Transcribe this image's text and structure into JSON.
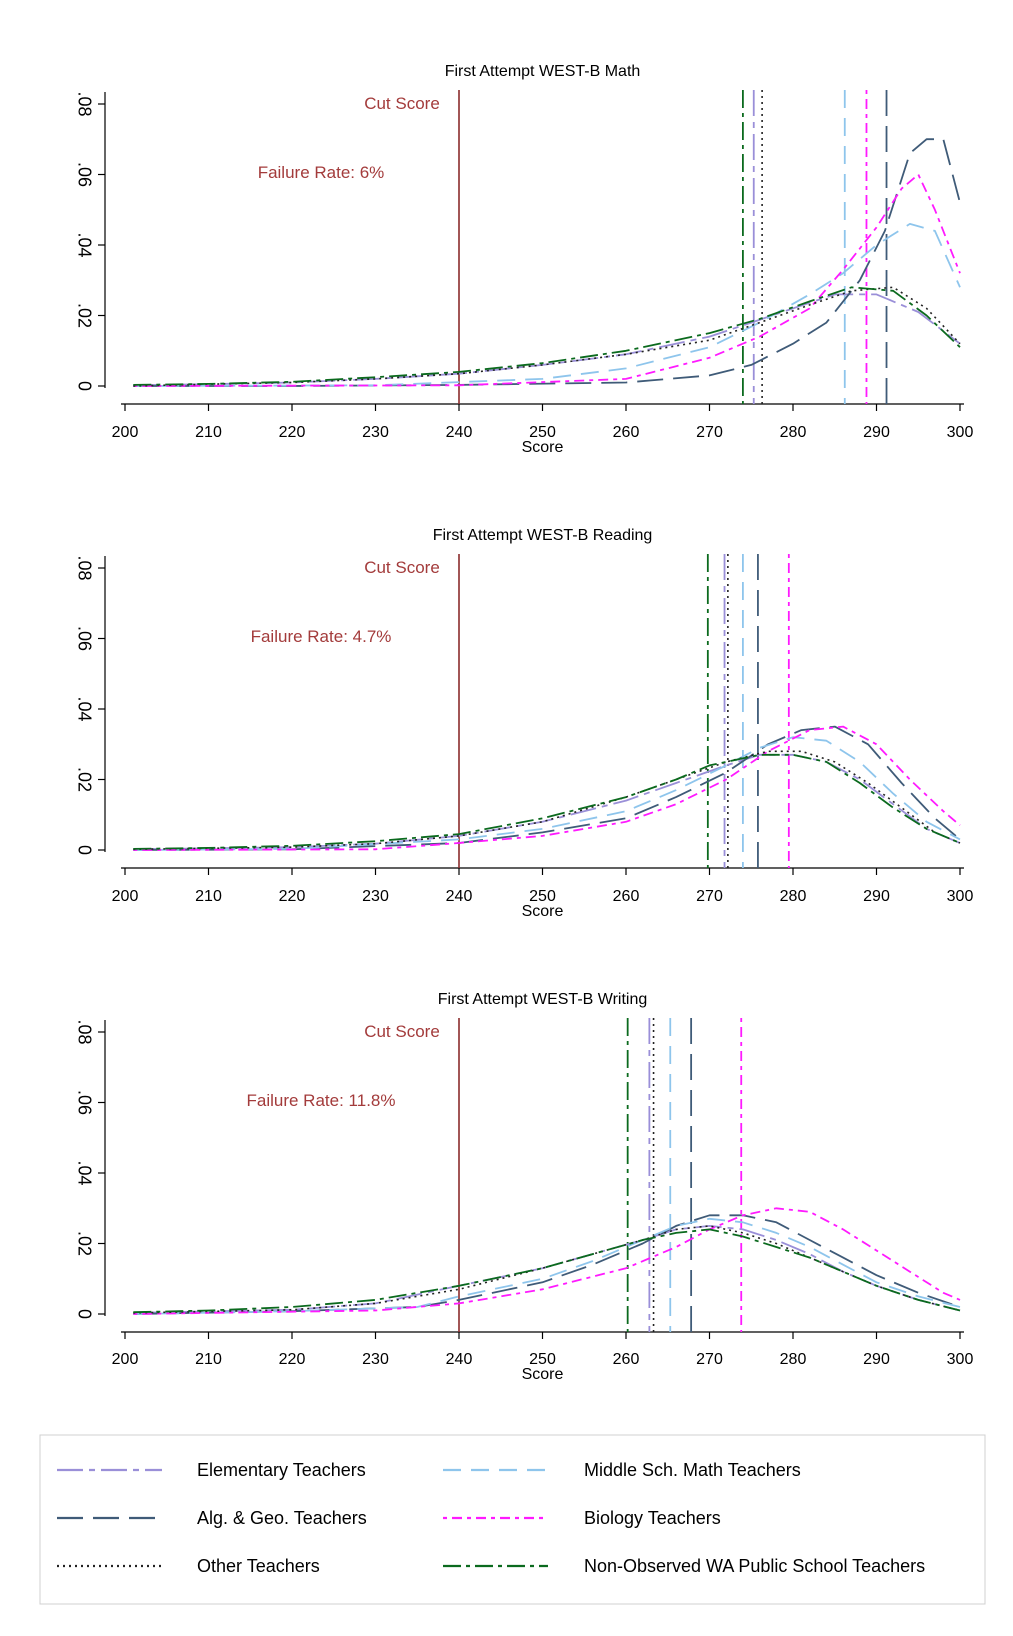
{
  "colors": {
    "cut": "#8b2c2c",
    "elementary": "#9a8fd8",
    "alggeo": "#3f5b78",
    "middle": "#8ec5ec",
    "biology": "#ff1aff",
    "other": "#222222",
    "nonobs": "#0b6a1e",
    "annotation": "#a33b3b",
    "axis": "#000000"
  },
  "chart_data": [
    {
      "type": "line",
      "title": "First Attempt WEST-B Math",
      "xlabel": "Score",
      "ylabel": "",
      "xlim": [
        200,
        300
      ],
      "ylim": [
        0,
        0.08
      ],
      "xticks": [
        200,
        210,
        220,
        230,
        240,
        250,
        260,
        270,
        280,
        290,
        300
      ],
      "xtick_labels": [
        "200",
        "210",
        "220",
        "230",
        "240",
        "250",
        "260",
        "270",
        "280",
        "290",
        "300"
      ],
      "yticks": [
        0,
        0.02,
        0.04,
        0.06,
        0.08
      ],
      "ytick_labels": [
        "0",
        ".02",
        ".04",
        ".06",
        ".08"
      ],
      "cut_score": 240,
      "cut_label": "Cut Score",
      "failure_label": "Failure Rate: 6%",
      "series": [
        {
          "key": "elementary",
          "x": [
            201,
            210,
            220,
            230,
            240,
            250,
            260,
            270,
            275,
            280,
            285,
            290,
            295,
            300
          ],
          "y": [
            0.0002,
            0.0005,
            0.001,
            0.002,
            0.0035,
            0.006,
            0.009,
            0.014,
            0.018,
            0.022,
            0.026,
            0.026,
            0.021,
            0.012
          ]
        },
        {
          "key": "alggeo",
          "x": [
            201,
            220,
            240,
            260,
            270,
            275,
            280,
            284,
            288,
            291,
            294,
            296,
            298,
            300
          ],
          "y": [
            0.0,
            0.0,
            0.0003,
            0.001,
            0.003,
            0.006,
            0.012,
            0.018,
            0.03,
            0.044,
            0.066,
            0.07,
            0.07,
            0.052
          ]
        },
        {
          "key": "middle",
          "x": [
            201,
            230,
            250,
            260,
            270,
            276,
            282,
            286,
            290,
            294,
            297,
            300
          ],
          "y": [
            0.0,
            0.0002,
            0.002,
            0.005,
            0.011,
            0.018,
            0.026,
            0.032,
            0.04,
            0.046,
            0.044,
            0.028
          ]
        },
        {
          "key": "biology",
          "x": [
            201,
            240,
            260,
            270,
            276,
            282,
            286,
            290,
            293,
            295,
            297,
            300
          ],
          "y": [
            0.0,
            0.0002,
            0.002,
            0.008,
            0.014,
            0.022,
            0.033,
            0.045,
            0.056,
            0.06,
            0.05,
            0.032
          ]
        },
        {
          "key": "other",
          "x": [
            201,
            210,
            220,
            230,
            240,
            250,
            260,
            270,
            276,
            282,
            287,
            292,
            296,
            300
          ],
          "y": [
            0.0,
            0.0005,
            0.001,
            0.002,
            0.0035,
            0.006,
            0.009,
            0.013,
            0.018,
            0.023,
            0.027,
            0.028,
            0.022,
            0.012
          ]
        },
        {
          "key": "nonobs",
          "x": [
            201,
            210,
            220,
            230,
            240,
            250,
            260,
            270,
            276,
            282,
            287,
            292,
            296,
            300
          ],
          "y": [
            0.0003,
            0.0006,
            0.0012,
            0.0025,
            0.004,
            0.0065,
            0.01,
            0.015,
            0.019,
            0.024,
            0.028,
            0.027,
            0.02,
            0.011
          ]
        }
      ],
      "means": [
        {
          "key": "nonobs",
          "x": 274
        },
        {
          "key": "elementary",
          "x": 275.3
        },
        {
          "key": "other",
          "x": 276.3
        },
        {
          "key": "middle",
          "x": 286.2
        },
        {
          "key": "biology",
          "x": 288.8
        },
        {
          "key": "alggeo",
          "x": 291.2
        }
      ]
    },
    {
      "type": "line",
      "title": "First Attempt WEST-B Reading",
      "xlabel": "Score",
      "ylabel": "",
      "xlim": [
        200,
        300
      ],
      "ylim": [
        0,
        0.08
      ],
      "xticks": [
        200,
        210,
        220,
        230,
        240,
        250,
        260,
        270,
        280,
        290,
        300
      ],
      "xtick_labels": [
        "200",
        "210",
        "220",
        "230",
        "240",
        "250",
        "260",
        "270",
        "280",
        "290",
        "300"
      ],
      "yticks": [
        0,
        0.02,
        0.04,
        0.06,
        0.08
      ],
      "ytick_labels": [
        "0",
        ".02",
        ".04",
        ".06",
        ".08"
      ],
      "cut_score": 240,
      "cut_label": "Cut Score",
      "failure_label": "Failure Rate: 4.7%",
      "series": [
        {
          "key": "elementary",
          "x": [
            201,
            220,
            230,
            240,
            250,
            260,
            266,
            272,
            276,
            280,
            284,
            288,
            292,
            296,
            300
          ],
          "y": [
            0.0002,
            0.0008,
            0.0018,
            0.004,
            0.008,
            0.014,
            0.019,
            0.024,
            0.027,
            0.027,
            0.025,
            0.02,
            0.013,
            0.006,
            0.002
          ]
        },
        {
          "key": "alggeo",
          "x": [
            201,
            220,
            240,
            250,
            260,
            266,
            272,
            277,
            281,
            285,
            289,
            293,
            297,
            300
          ],
          "y": [
            0.0,
            0.0002,
            0.002,
            0.005,
            0.009,
            0.015,
            0.022,
            0.03,
            0.034,
            0.035,
            0.03,
            0.019,
            0.009,
            0.003
          ]
        },
        {
          "key": "middle",
          "x": [
            201,
            220,
            240,
            250,
            260,
            266,
            272,
            276,
            280,
            284,
            288,
            292,
            296,
            300
          ],
          "y": [
            0.0,
            0.0003,
            0.003,
            0.006,
            0.011,
            0.017,
            0.024,
            0.029,
            0.032,
            0.031,
            0.025,
            0.016,
            0.008,
            0.003
          ]
        },
        {
          "key": "biology",
          "x": [
            201,
            230,
            240,
            250,
            260,
            266,
            272,
            277,
            282,
            286,
            290,
            294,
            298,
            300
          ],
          "y": [
            0.0,
            0.0002,
            0.002,
            0.004,
            0.008,
            0.013,
            0.02,
            0.028,
            0.034,
            0.035,
            0.03,
            0.02,
            0.011,
            0.007
          ]
        },
        {
          "key": "other",
          "x": [
            201,
            220,
            230,
            240,
            250,
            260,
            266,
            272,
            277,
            281,
            285,
            289,
            293,
            297,
            300
          ],
          "y": [
            0.0002,
            0.0008,
            0.0018,
            0.004,
            0.008,
            0.015,
            0.02,
            0.025,
            0.028,
            0.028,
            0.025,
            0.019,
            0.012,
            0.005,
            0.002
          ]
        },
        {
          "key": "nonobs",
          "x": [
            201,
            210,
            220,
            230,
            240,
            250,
            260,
            266,
            270,
            276,
            280,
            284,
            288,
            292,
            296,
            300
          ],
          "y": [
            0.0003,
            0.0006,
            0.0012,
            0.0025,
            0.0045,
            0.009,
            0.015,
            0.02,
            0.024,
            0.027,
            0.027,
            0.025,
            0.019,
            0.012,
            0.006,
            0.002
          ]
        }
      ],
      "means": [
        {
          "key": "nonobs",
          "x": 269.8
        },
        {
          "key": "elementary",
          "x": 271.8
        },
        {
          "key": "other",
          "x": 272.2
        },
        {
          "key": "middle",
          "x": 274
        },
        {
          "key": "alggeo",
          "x": 275.8
        },
        {
          "key": "biology",
          "x": 279.5
        }
      ]
    },
    {
      "type": "line",
      "title": "First Attempt WEST-B Writing",
      "xlabel": "Score",
      "ylabel": "",
      "xlim": [
        200,
        300
      ],
      "ylim": [
        0,
        0.08
      ],
      "xticks": [
        200,
        210,
        220,
        230,
        240,
        250,
        260,
        270,
        280,
        290,
        300
      ],
      "xtick_labels": [
        "200",
        "210",
        "220",
        "230",
        "240",
        "250",
        "260",
        "270",
        "280",
        "290",
        "300"
      ],
      "yticks": [
        0,
        0.02,
        0.04,
        0.06,
        0.08
      ],
      "ytick_labels": [
        "0",
        ".02",
        ".04",
        ".06",
        ".08"
      ],
      "cut_score": 240,
      "cut_label": "Cut Score",
      "failure_label": "Failure Rate: 11.8%",
      "series": [
        {
          "key": "elementary",
          "x": [
            201,
            220,
            230,
            240,
            250,
            256,
            262,
            266,
            270,
            274,
            278,
            282,
            286,
            290,
            295,
            300
          ],
          "y": [
            0.0003,
            0.0012,
            0.003,
            0.008,
            0.013,
            0.017,
            0.021,
            0.024,
            0.025,
            0.024,
            0.021,
            0.017,
            0.012,
            0.008,
            0.004,
            0.001
          ]
        },
        {
          "key": "alggeo",
          "x": [
            201,
            220,
            235,
            240,
            250,
            256,
            262,
            266,
            270,
            274,
            278,
            282,
            286,
            290,
            295,
            300
          ],
          "y": [
            0.0,
            0.0008,
            0.002,
            0.004,
            0.009,
            0.014,
            0.02,
            0.025,
            0.028,
            0.028,
            0.026,
            0.021,
            0.016,
            0.011,
            0.006,
            0.002
          ]
        },
        {
          "key": "middle",
          "x": [
            201,
            220,
            235,
            240,
            250,
            256,
            262,
            266,
            270,
            274,
            278,
            282,
            286,
            290,
            295,
            300
          ],
          "y": [
            0.0,
            0.0008,
            0.002,
            0.005,
            0.01,
            0.015,
            0.021,
            0.025,
            0.027,
            0.026,
            0.023,
            0.019,
            0.014,
            0.009,
            0.005,
            0.002
          ]
        },
        {
          "key": "biology",
          "x": [
            201,
            230,
            240,
            250,
            260,
            266,
            270,
            274,
            278,
            282,
            286,
            290,
            294,
            298,
            300
          ],
          "y": [
            0.0,
            0.001,
            0.003,
            0.007,
            0.013,
            0.019,
            0.024,
            0.028,
            0.03,
            0.029,
            0.024,
            0.018,
            0.012,
            0.006,
            0.004
          ]
        },
        {
          "key": "other",
          "x": [
            201,
            220,
            230,
            240,
            250,
            256,
            262,
            266,
            270,
            274,
            278,
            282,
            286,
            290,
            295,
            300
          ],
          "y": [
            0.0003,
            0.0012,
            0.003,
            0.007,
            0.013,
            0.017,
            0.021,
            0.024,
            0.025,
            0.023,
            0.02,
            0.016,
            0.012,
            0.008,
            0.004,
            0.001
          ]
        },
        {
          "key": "nonobs",
          "x": [
            201,
            210,
            220,
            230,
            240,
            250,
            256,
            262,
            266,
            270,
            274,
            278,
            282,
            286,
            290,
            295,
            300
          ],
          "y": [
            0.0005,
            0.001,
            0.002,
            0.004,
            0.008,
            0.013,
            0.017,
            0.021,
            0.023,
            0.024,
            0.022,
            0.019,
            0.016,
            0.012,
            0.008,
            0.004,
            0.001
          ]
        }
      ],
      "means": [
        {
          "key": "nonobs",
          "x": 260.2
        },
        {
          "key": "elementary",
          "x": 262.8
        },
        {
          "key": "other",
          "x": 263.3
        },
        {
          "key": "middle",
          "x": 265.3
        },
        {
          "key": "alggeo",
          "x": 267.8
        },
        {
          "key": "biology",
          "x": 273.8
        }
      ]
    }
  ],
  "legend": {
    "entries": [
      {
        "key": "elementary",
        "label": "Elementary Teachers"
      },
      {
        "key": "middle",
        "label": "Middle Sch. Math Teachers"
      },
      {
        "key": "alggeo",
        "label": "Alg. & Geo. Teachers"
      },
      {
        "key": "biology",
        "label": "Biology Teachers"
      },
      {
        "key": "other",
        "label": "Other Teachers"
      },
      {
        "key": "nonobs",
        "label": "Non-Observed WA Public School Teachers"
      }
    ]
  }
}
